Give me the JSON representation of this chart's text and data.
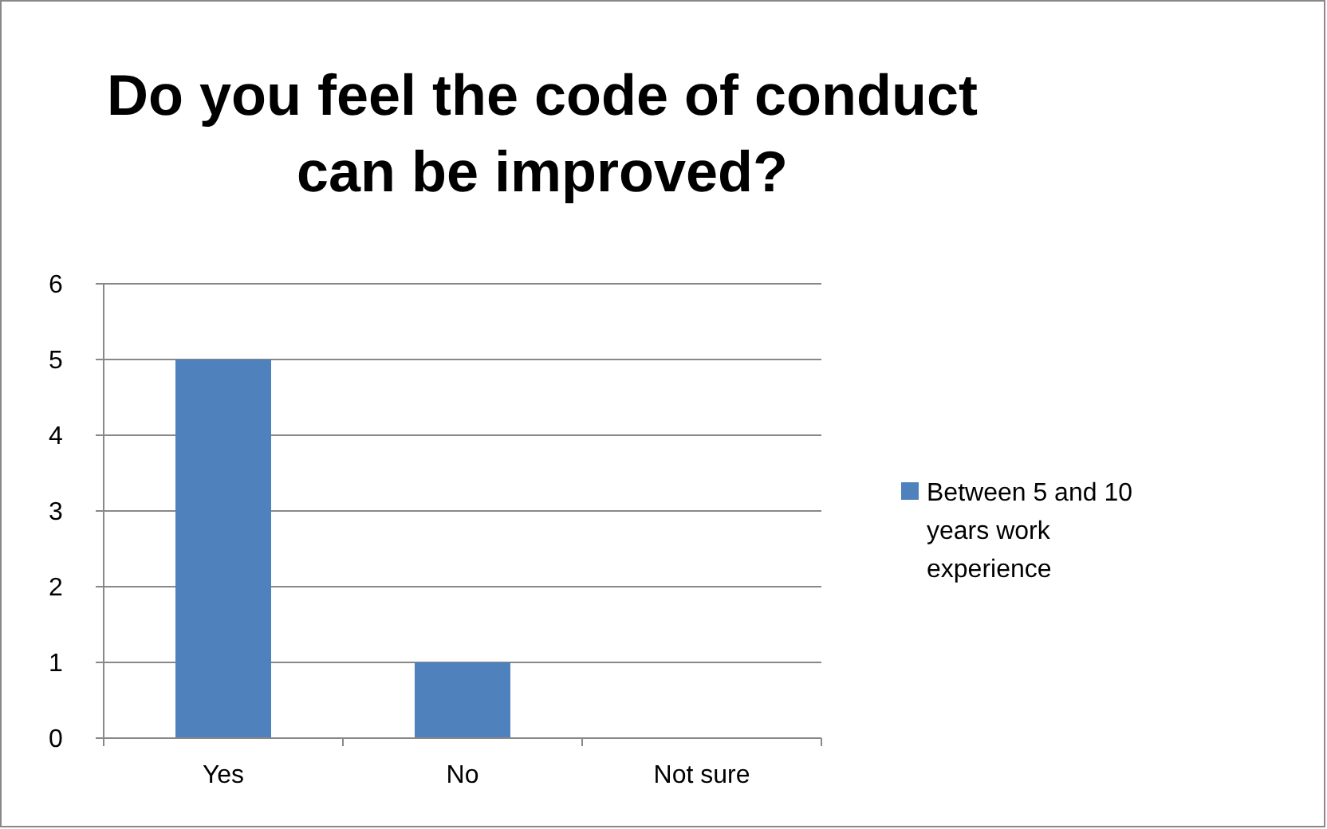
{
  "chart_data": {
    "type": "bar",
    "title": "Do you feel the code of conduct can be improved?",
    "categories": [
      "Yes",
      "No",
      "Not sure"
    ],
    "series": [
      {
        "name": "Between 5 and 10 years work experience",
        "color": "#4f81bd",
        "values": [
          5,
          1,
          0
        ]
      }
    ],
    "ylim": [
      0,
      6
    ],
    "yticks": [
      0,
      1,
      2,
      3,
      4,
      5,
      6
    ],
    "grid": "y",
    "legend": "right"
  }
}
